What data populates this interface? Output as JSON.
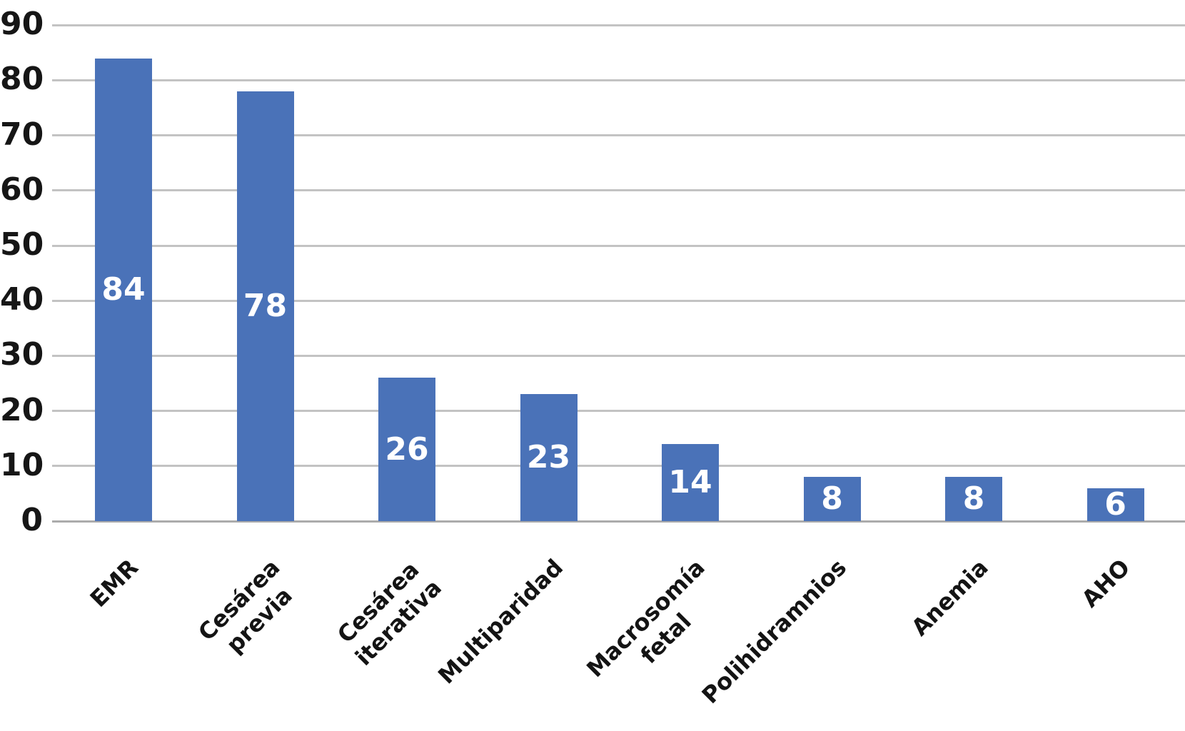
{
  "chart_data": {
    "type": "bar",
    "title": "",
    "xlabel": "",
    "ylabel": "",
    "categories": [
      "EMR",
      "Cesárea\nprevia",
      "Cesárea\niterativa",
      "Multiparidad",
      "Macrosomía\nfetal",
      "Polihidramnios",
      "Anemia",
      "AHO"
    ],
    "values": [
      84,
      78,
      26,
      23,
      14,
      8,
      8,
      6
    ],
    "data_labels": [
      "84",
      "78",
      "26",
      "23",
      "14",
      "8",
      "8",
      "6"
    ],
    "yticks": [
      "0",
      "10",
      "20",
      "30",
      "40",
      "50",
      "60",
      "70",
      "80",
      "90"
    ],
    "ylim": [
      0,
      90
    ],
    "ytick_interval": 10,
    "grid": true,
    "legend_position": "none",
    "bar_color": "#4a72b8",
    "data_label_color": "#ffffff",
    "axis_text_color": "#161616",
    "gridline_color": "#c3c3c3",
    "baseline_color": "#ababab",
    "background_color": "#ffffff"
  }
}
